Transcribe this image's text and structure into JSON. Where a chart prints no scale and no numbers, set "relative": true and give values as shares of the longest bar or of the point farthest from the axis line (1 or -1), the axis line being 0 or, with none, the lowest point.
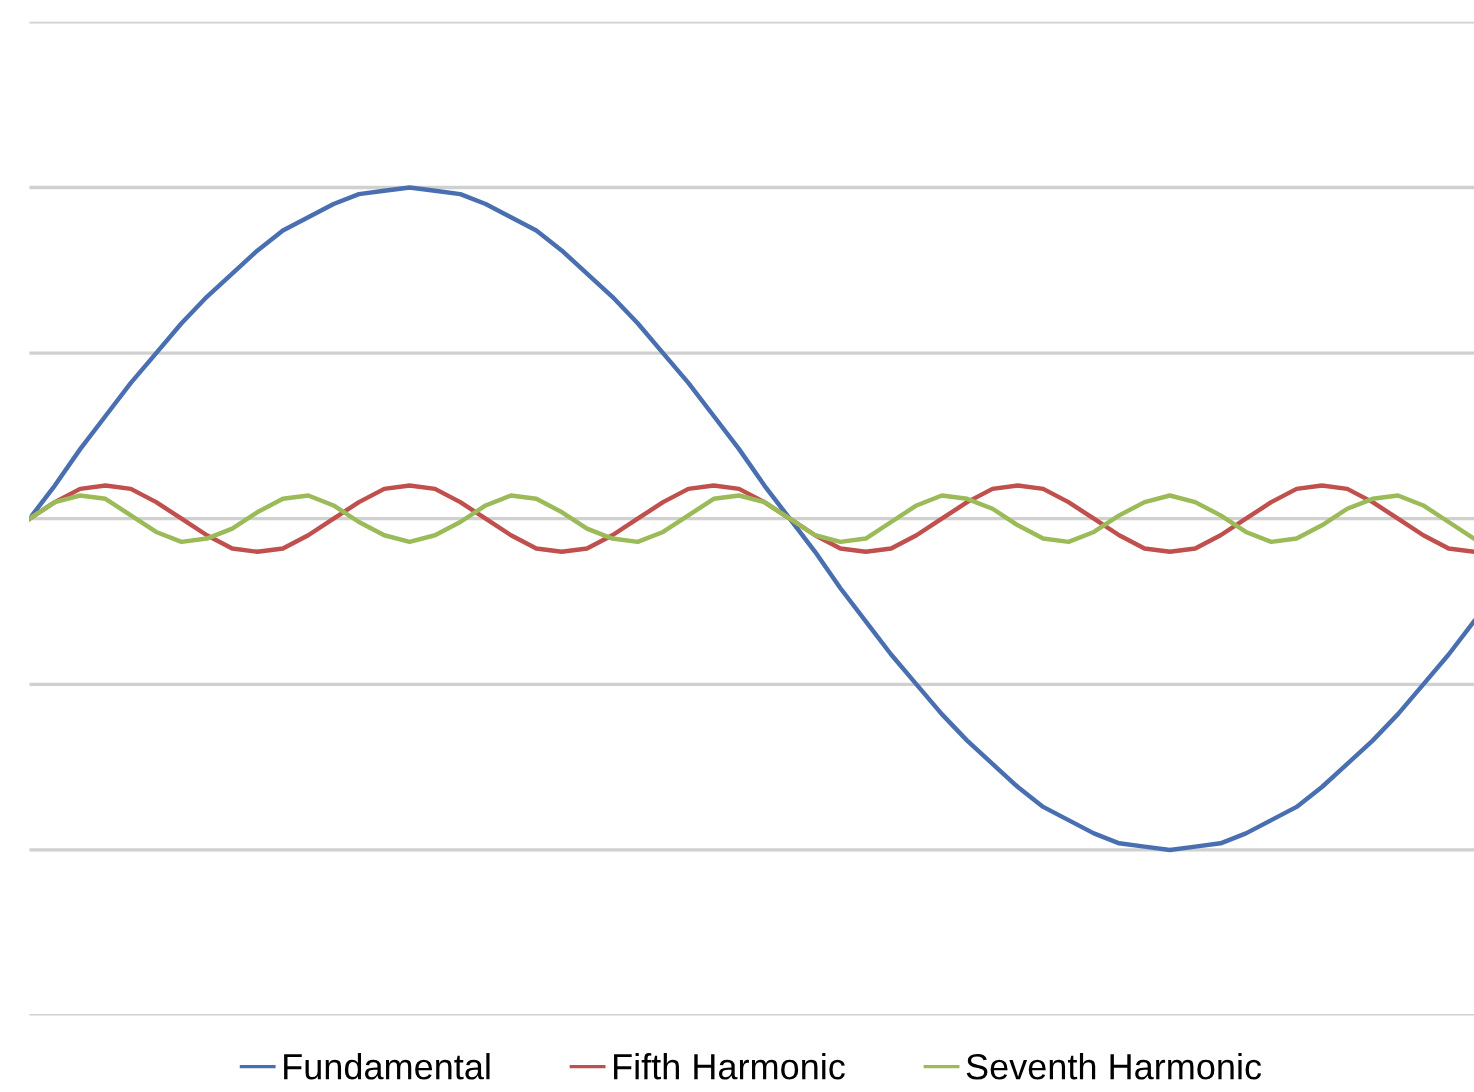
{
  "chart_data": {
    "type": "line",
    "relative": true,
    "grid": "y",
    "legend": "bottom",
    "marker": "none",
    "line_style": "solid",
    "categories": [
      null,
      null,
      null,
      null,
      null,
      null,
      null,
      null,
      null,
      null,
      null,
      null,
      null,
      null,
      null,
      null,
      null,
      null,
      null,
      null,
      null,
      null,
      null,
      null,
      null,
      null,
      null,
      null,
      null,
      null,
      null,
      null,
      null,
      null,
      null,
      null,
      null,
      null,
      null,
      null,
      null,
      null,
      null,
      null,
      null,
      null,
      null,
      null,
      null,
      null,
      null,
      null,
      null,
      null,
      null,
      null,
      null,
      null
    ],
    "series": [
      {
        "name": "Fundamental",
        "color": "#4a6fb0",
        "values": [
          0,
          0.1,
          0.21,
          0.31,
          0.41,
          0.5,
          0.59,
          0.67,
          0.74,
          0.81,
          0.87,
          0.91,
          0.95,
          0.98,
          0.99,
          1,
          0.99,
          0.98,
          0.95,
          0.91,
          0.87,
          0.81,
          0.74,
          0.67,
          0.59,
          0.5,
          0.41,
          0.31,
          0.21,
          0.1,
          0,
          -0.1,
          -0.21,
          -0.31,
          -0.41,
          -0.5,
          -0.59,
          -0.67,
          -0.74,
          -0.81,
          -0.87,
          -0.91,
          -0.95,
          -0.98,
          -0.99,
          -1,
          -0.99,
          -0.98,
          -0.95,
          -0.91,
          -0.87,
          -0.81,
          -0.74,
          -0.67,
          -0.59,
          -0.5,
          -0.41,
          -0.31
        ]
      },
      {
        "name": "Fifth Harmonic",
        "color": "#c0504d",
        "values": [
          0,
          0.05,
          0.09,
          0.1,
          0.09,
          0.05,
          0,
          -0.05,
          -0.09,
          -0.1,
          -0.09,
          -0.05,
          0,
          0.05,
          0.09,
          0.1,
          0.09,
          0.05,
          0,
          -0.05,
          -0.09,
          -0.1,
          -0.09,
          -0.05,
          0,
          0.05,
          0.09,
          0.1,
          0.09,
          0.05,
          0,
          -0.05,
          -0.09,
          -0.1,
          -0.09,
          -0.05,
          0,
          0.05,
          0.09,
          0.1,
          0.09,
          0.05,
          0,
          -0.05,
          -0.09,
          -0.1,
          -0.09,
          -0.05,
          0,
          0.05,
          0.09,
          0.1,
          0.09,
          0.05,
          0,
          -0.05,
          -0.09,
          -0.1
        ]
      },
      {
        "name": "Seventh Harmonic",
        "color": "#9bbb59",
        "values": [
          0,
          0.05,
          0.07,
          0.06,
          0.01,
          -0.04,
          -0.07,
          -0.06,
          -0.03,
          0.02,
          0.06,
          0.07,
          0.04,
          -0.01,
          -0.05,
          -0.07,
          -0.05,
          -0.01,
          0.04,
          0.07,
          0.06,
          0.02,
          -0.03,
          -0.06,
          -0.07,
          -0.04,
          0.01,
          0.06,
          0.07,
          0.05,
          0,
          -0.05,
          -0.07,
          -0.06,
          -0.01,
          0.04,
          0.07,
          0.06,
          0.03,
          -0.02,
          -0.06,
          -0.07,
          -0.04,
          0.01,
          0.05,
          0.07,
          0.05,
          0.01,
          -0.04,
          -0.07,
          -0.06,
          -0.02,
          0.03,
          0.06,
          0.07,
          0.04,
          -0.01,
          -0.06
        ]
      }
    ]
  }
}
